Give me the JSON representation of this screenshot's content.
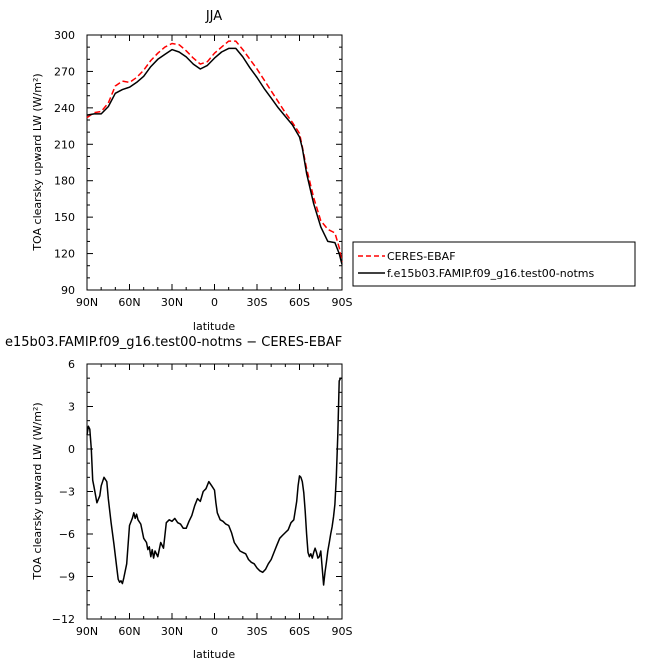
{
  "chart_data": [
    {
      "type": "line",
      "title": "JJA",
      "xlabel": "latitude",
      "ylabel": "TOA clearsky upward LW (W/m²)",
      "xlim": [
        90,
        -90
      ],
      "ylim": [
        90,
        300
      ],
      "x_ticks": [
        90,
        60,
        30,
        0,
        -30,
        -60,
        -90
      ],
      "x_tick_labels": [
        "90N",
        "60N",
        "30N",
        "0",
        "30S",
        "60S",
        "90S"
      ],
      "y_ticks": [
        90,
        120,
        150,
        180,
        210,
        240,
        270,
        300
      ],
      "legend_position": "right",
      "series": [
        {
          "name": "CERES-EBAF",
          "color": "#ff0000",
          "dash": "dashed",
          "x": [
            90,
            85,
            80,
            75,
            70,
            65,
            60,
            55,
            50,
            45,
            40,
            35,
            30,
            25,
            20,
            15,
            10,
            5,
            0,
            -5,
            -10,
            -15,
            -20,
            -25,
            -30,
            -35,
            -40,
            -45,
            -50,
            -55,
            -60,
            -62,
            -65,
            -70,
            -75,
            -80,
            -85,
            -88,
            -90
          ],
          "y": [
            232,
            236,
            237,
            244,
            258,
            262,
            261,
            265,
            271,
            279,
            285,
            290,
            293,
            292,
            287,
            281,
            276,
            278,
            285,
            290,
            295,
            295,
            288,
            280,
            272,
            263,
            254,
            245,
            236,
            228,
            219,
            208,
            190,
            166,
            147,
            140,
            137,
            125,
            113
          ]
        },
        {
          "name": "f.e15b03.FAMIP.f09_g16.test00-notms",
          "color": "#000000",
          "dash": "solid",
          "x": [
            90,
            85,
            80,
            75,
            70,
            65,
            60,
            55,
            50,
            45,
            40,
            35,
            30,
            25,
            20,
            15,
            10,
            5,
            0,
            -5,
            -10,
            -15,
            -20,
            -25,
            -30,
            -35,
            -40,
            -45,
            -50,
            -55,
            -60,
            -62,
            -65,
            -70,
            -75,
            -80,
            -85,
            -88,
            -90
          ],
          "y": [
            234,
            235,
            235,
            241,
            252,
            255,
            257,
            261,
            266,
            274,
            280,
            284,
            288,
            286,
            282,
            276,
            272,
            275,
            281,
            286,
            289,
            289,
            282,
            273,
            265,
            256,
            248,
            240,
            233,
            226,
            216,
            207,
            186,
            161,
            142,
            130,
            129,
            120,
            111
          ]
        }
      ]
    },
    {
      "type": "line",
      "title": "e15b03.FAMIP.f09_g16.test00-notms − CERES-EBAF",
      "xlabel": "latitude",
      "ylabel": "TOA clearsky upward LW (W/m²)",
      "xlim": [
        90,
        -90
      ],
      "ylim": [
        -12,
        6
      ],
      "x_ticks": [
        90,
        60,
        30,
        0,
        -30,
        -60,
        -90
      ],
      "x_tick_labels": [
        "90N",
        "60N",
        "30N",
        "0",
        "30S",
        "60S",
        "90S"
      ],
      "y_ticks": [
        -12,
        -9,
        -6,
        -3,
        0,
        3,
        6
      ],
      "series": [
        {
          "color": "#000000",
          "x": [
            90,
            89,
            88,
            87,
            86,
            85,
            83,
            81,
            80,
            78,
            76,
            75,
            73,
            71,
            69,
            68,
            67,
            66,
            65,
            64,
            62,
            60,
            58,
            57,
            56,
            55,
            54,
            52,
            50,
            48,
            47,
            46,
            45,
            44,
            43,
            42,
            40,
            38,
            36,
            35,
            34,
            32,
            30,
            28,
            26,
            24,
            22,
            20,
            18,
            16,
            14,
            12,
            10,
            8,
            6,
            4,
            2,
            0,
            -1,
            -2,
            -4,
            -6,
            -8,
            -10,
            -12,
            -14,
            -16,
            -18,
            -20,
            -22,
            -24,
            -26,
            -28,
            -30,
            -32,
            -34,
            -36,
            -38,
            -40,
            -42,
            -44,
            -46,
            -48,
            -50,
            -52,
            -54,
            -56,
            -58,
            -59,
            -60,
            -61,
            -62,
            -63,
            -64,
            -65,
            -66,
            -67,
            -68,
            -69,
            -70,
            -71,
            -72,
            -73,
            -74,
            -75,
            -76,
            -77,
            -78,
            -79,
            -80,
            -81,
            -82,
            -83,
            -84,
            -85,
            -86,
            -87,
            -88,
            -89,
            -90
          ],
          "y": [
            1.0,
            1.6,
            1.4,
            0.0,
            -2.2,
            -2.7,
            -3.8,
            -3.3,
            -2.6,
            -2.0,
            -2.3,
            -3.5,
            -5.2,
            -6.7,
            -8.4,
            -9.2,
            -9.4,
            -9.3,
            -9.5,
            -9.1,
            -8.1,
            -5.4,
            -4.9,
            -4.5,
            -4.9,
            -4.6,
            -5.0,
            -5.3,
            -6.3,
            -6.6,
            -7.1,
            -6.9,
            -7.6,
            -7.1,
            -7.7,
            -7.2,
            -7.6,
            -6.6,
            -7.0,
            -6.1,
            -5.2,
            -5.0,
            -5.1,
            -4.9,
            -5.2,
            -5.3,
            -5.6,
            -5.6,
            -5.1,
            -4.7,
            -4.0,
            -3.5,
            -3.7,
            -3.0,
            -2.8,
            -2.3,
            -2.6,
            -2.9,
            -3.8,
            -4.5,
            -5.0,
            -5.1,
            -5.3,
            -5.4,
            -5.9,
            -6.6,
            -6.9,
            -7.2,
            -7.3,
            -7.4,
            -7.8,
            -8.0,
            -8.1,
            -8.4,
            -8.6,
            -8.7,
            -8.5,
            -8.1,
            -7.8,
            -7.3,
            -6.8,
            -6.3,
            -6.1,
            -5.9,
            -5.7,
            -5.2,
            -5.0,
            -3.7,
            -2.6,
            -1.9,
            -2.0,
            -2.3,
            -3.1,
            -4.4,
            -6.0,
            -7.3,
            -7.6,
            -7.4,
            -7.7,
            -7.3,
            -7.0,
            -7.3,
            -7.7,
            -7.6,
            -7.2,
            -8.4,
            -9.6,
            -8.7,
            -8.0,
            -7.2,
            -6.6,
            -6.0,
            -5.5,
            -4.8,
            -3.9,
            -2.0,
            1.0,
            4.8,
            5.0,
            5.0
          ]
        }
      ]
    }
  ]
}
